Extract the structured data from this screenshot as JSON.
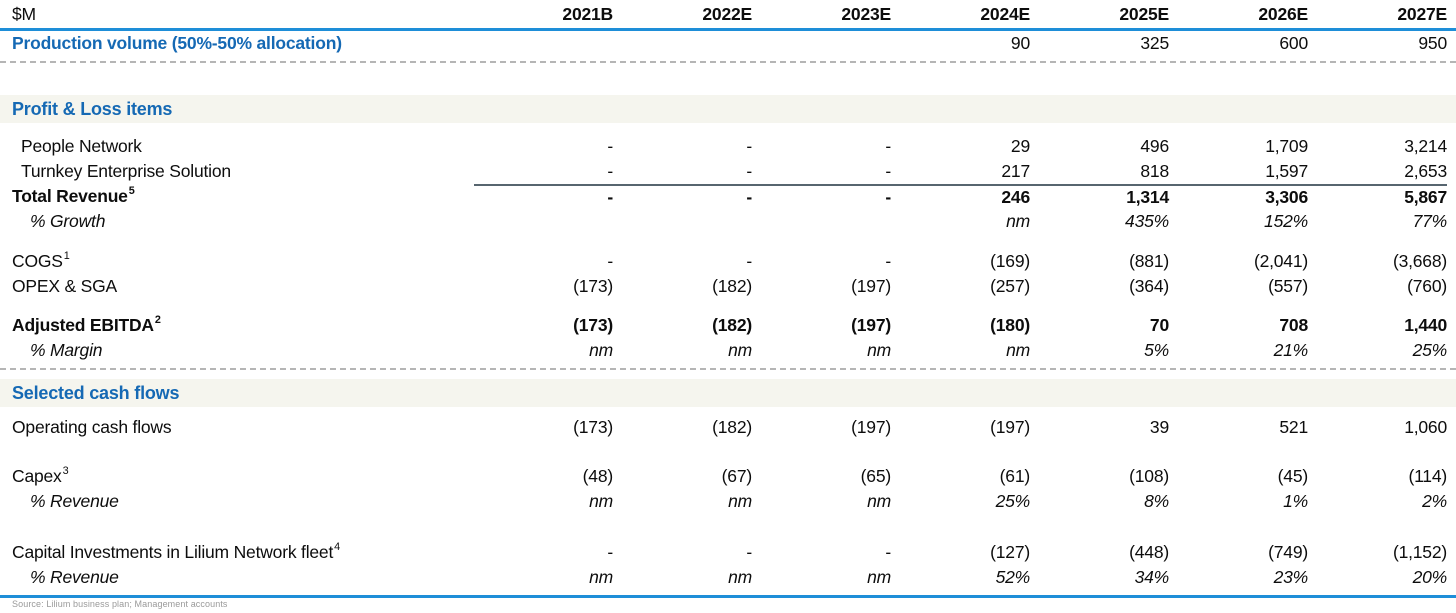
{
  "table": {
    "unit_label": "$M",
    "columns": [
      "2021B",
      "2022E",
      "2023E",
      "2024E",
      "2025E",
      "2026E",
      "2027E"
    ],
    "sections": {
      "pnl": "Profit & Loss items",
      "cash": "Selected cash flows"
    },
    "rows": {
      "production_volume": {
        "label": "Production volume (50%-50% allocation)",
        "sup": "",
        "values": [
          "",
          "",
          "",
          "90",
          "325",
          "600",
          "950"
        ]
      },
      "people_network": {
        "label": "People Network",
        "sup": "",
        "values": [
          "-",
          "-",
          "-",
          "29",
          "496",
          "1,709",
          "3,214"
        ]
      },
      "turnkey": {
        "label": "Turnkey Enterprise Solution",
        "sup": "",
        "values": [
          "-",
          "-",
          "-",
          "217",
          "818",
          "1,597",
          "2,653"
        ]
      },
      "total_revenue": {
        "label": "Total Revenue",
        "sup": "5",
        "values": [
          "-",
          "-",
          "-",
          "246",
          "1,314",
          "3,306",
          "5,867"
        ]
      },
      "growth": {
        "label": "% Growth",
        "sup": "",
        "values": [
          "",
          "",
          "",
          "nm",
          "435%",
          "152%",
          "77%"
        ]
      },
      "cogs": {
        "label": "COGS",
        "sup": "1",
        "values": [
          "-",
          "-",
          "-",
          "(169)",
          "(881)",
          "(2,041)",
          "(3,668)"
        ]
      },
      "opex_sga": {
        "label": "OPEX & SGA",
        "sup": "",
        "values": [
          "(173)",
          "(182)",
          "(197)",
          "(257)",
          "(364)",
          "(557)",
          "(760)"
        ]
      },
      "adjusted_ebitda": {
        "label": "Adjusted EBITDA",
        "sup": "2",
        "values": [
          "(173)",
          "(182)",
          "(197)",
          "(180)",
          "70",
          "708",
          "1,440"
        ]
      },
      "margin": {
        "label": "% Margin",
        "sup": "",
        "values": [
          "nm",
          "nm",
          "nm",
          "nm",
          "5%",
          "21%",
          "25%"
        ]
      },
      "operating_cash_flows": {
        "label": "Operating cash flows",
        "sup": "",
        "values": [
          "(173)",
          "(182)",
          "(197)",
          "(197)",
          "39",
          "521",
          "1,060"
        ]
      },
      "capex": {
        "label": "Capex",
        "sup": "3",
        "values": [
          "(48)",
          "(67)",
          "(65)",
          "(61)",
          "(108)",
          "(45)",
          "(114)"
        ]
      },
      "capex_pct_revenue": {
        "label": "% Revenue",
        "sup": "",
        "values": [
          "nm",
          "nm",
          "nm",
          "25%",
          "8%",
          "1%",
          "2%"
        ]
      },
      "capital_investments": {
        "label": "Capital Investments in Lilium Network fleet",
        "sup": "4",
        "values": [
          "-",
          "-",
          "-",
          "(127)",
          "(448)",
          "(749)",
          "(1,152)"
        ]
      },
      "capinv_pct_revenue": {
        "label": "% Revenue",
        "sup": "",
        "values": [
          "nm",
          "nm",
          "nm",
          "52%",
          "34%",
          "23%",
          "20%"
        ]
      }
    },
    "source_note": "Source: Lilium business plan; Management accounts"
  },
  "colors": {
    "heading_blue": "#1569b4",
    "rule_blue": "#1e8ed8",
    "section_band_bg": "#f5f5ee",
    "subtotal_rule": "#57656f"
  }
}
